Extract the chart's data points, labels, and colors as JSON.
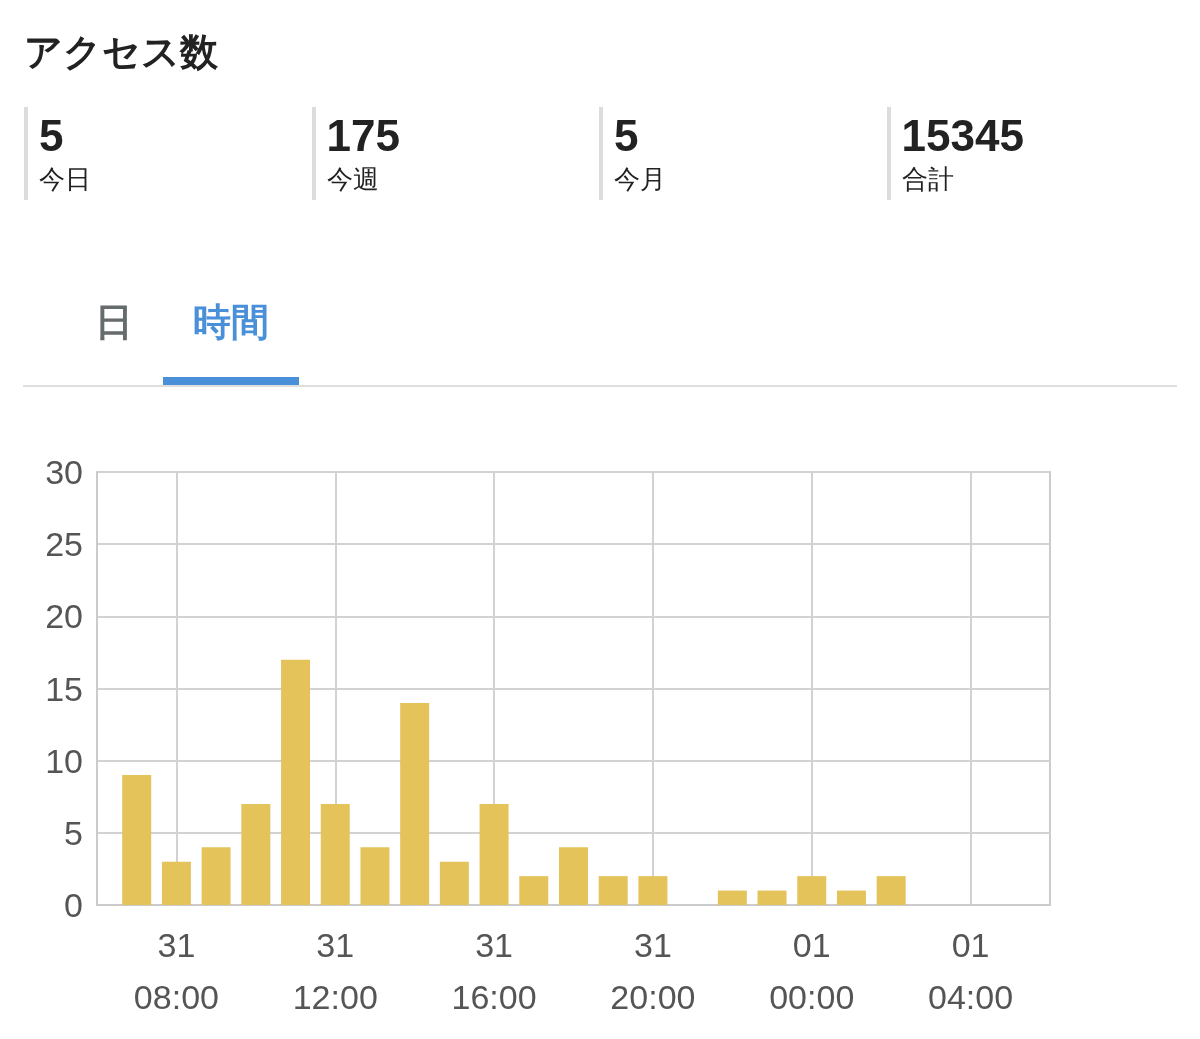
{
  "chart_data": [
    {
      "type": "other",
      "title": "アクセス数",
      "categories": [
        "今日",
        "今週",
        "今月",
        "合計"
      ],
      "values": [
        5,
        175,
        5,
        15345
      ],
      "data_labels": true
    },
    {
      "type": "bar",
      "annotations": [
        "日",
        "時間"
      ],
      "categories": [
        null,
        null,
        "31\n08:00",
        null,
        null,
        null,
        "31\n12:00",
        null,
        null,
        null,
        "31\n16:00",
        null,
        null,
        null,
        "31\n20:00",
        null,
        null,
        null,
        "01\n00:00",
        null,
        null,
        null,
        "01\n04:00",
        null,
        null
      ],
      "values": [
        null,
        9,
        3,
        4,
        7,
        17,
        7,
        4,
        14,
        3,
        7,
        2,
        4,
        2,
        2,
        null,
        1,
        1,
        2,
        1,
        2,
        null,
        null,
        null,
        null
      ],
      "color": "#e4c35a",
      "ylim": [
        0,
        30
      ],
      "yticks": [
        0,
        5,
        10,
        15,
        20,
        25,
        30
      ],
      "grid": true
    }
  ]
}
